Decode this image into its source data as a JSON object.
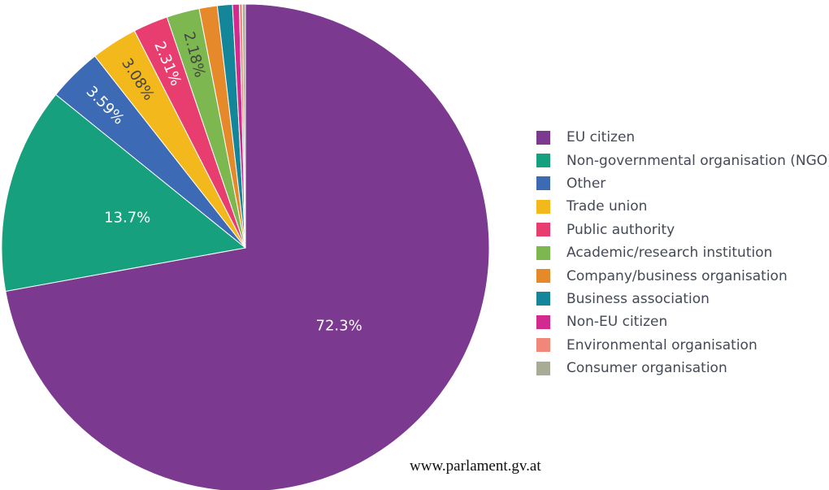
{
  "chart_data": {
    "type": "pie",
    "slices": [
      {
        "label": "EU citizen",
        "value": 72.3,
        "display": "72.3%",
        "color": "#7b3a8f",
        "label_color": "#ffffff"
      },
      {
        "label": "Non-governmental organisation (NGO)",
        "value": 13.7,
        "display": "13.7%",
        "color": "#16a07d",
        "label_color": "#ffffff"
      },
      {
        "label": "Other",
        "value": 3.59,
        "display": "3.59%",
        "color": "#3d6ab5",
        "label_color": "#ffffff"
      },
      {
        "label": "Trade union",
        "value": 3.08,
        "display": "3.08%",
        "color": "#f2b81c",
        "label_color": "#444444"
      },
      {
        "label": "Public authority",
        "value": 2.31,
        "display": "2.31%",
        "color": "#e83e6f",
        "label_color": "#ffffff"
      },
      {
        "label": "Academic/research institution",
        "value": 2.18,
        "display": "2.18%",
        "color": "#7cb84f",
        "label_color": "#444444"
      },
      {
        "label": "Company/business organisation",
        "value": 1.2,
        "display": "",
        "color": "#e5892a",
        "label_color": "#444444"
      },
      {
        "label": "Business association",
        "value": 1.0,
        "display": "",
        "color": "#14869a",
        "label_color": "#444444"
      },
      {
        "label": "Non-EU citizen",
        "value": 0.45,
        "display": "",
        "color": "#d32a8e",
        "label_color": "#444444"
      },
      {
        "label": "Environmental organisation",
        "value": 0.2,
        "display": "",
        "color": "#f08778",
        "label_color": "#444444"
      },
      {
        "label": "Consumer organisation",
        "value": 0.2,
        "display": "",
        "color": "#a8ab96",
        "label_color": "#444444"
      }
    ],
    "legend_position": "right"
  },
  "source": "www.parlament.gv.at"
}
